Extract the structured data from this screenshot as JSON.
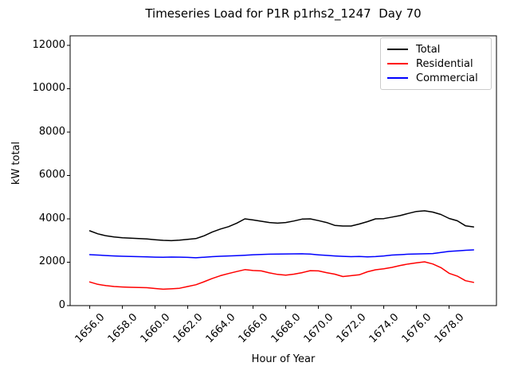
{
  "title": "Timeseries Load for P1R p1rhs2_1247  Day 70",
  "xlabel": "Hour of Year",
  "ylabel": "kW total",
  "legend": {
    "items": [
      {
        "label": "Total",
        "color": "#000000"
      },
      {
        "label": "Residential",
        "color": "#ff0000"
      },
      {
        "label": "Commercial",
        "color": "#0000ff"
      }
    ]
  },
  "colors": {
    "total": "#000000",
    "residential": "#ff0000",
    "commercial": "#0000ff",
    "spine": "#000000",
    "legend_border": "#cccccc",
    "background": "#ffffff"
  },
  "chart_data": {
    "type": "line",
    "title": "Timeseries Load for P1R p1rhs2_1247  Day 70",
    "xlabel": "Hour of Year",
    "ylabel": "kW total",
    "grid": false,
    "legend_position": "upper right",
    "xlim": [
      1654.8,
      1680.9
    ],
    "ylim": [
      0,
      12440
    ],
    "xticks": [
      {
        "value": 1656,
        "label": "1656.0"
      },
      {
        "value": 1658,
        "label": "1658.0"
      },
      {
        "value": 1660,
        "label": "1660.0"
      },
      {
        "value": 1662,
        "label": "1662.0"
      },
      {
        "value": 1664,
        "label": "1664.0"
      },
      {
        "value": 1666,
        "label": "1666.0"
      },
      {
        "value": 1668,
        "label": "1668.0"
      },
      {
        "value": 1670,
        "label": "1670.0"
      },
      {
        "value": 1672,
        "label": "1672.0"
      },
      {
        "value": 1674,
        "label": "1674.0"
      },
      {
        "value": 1676,
        "label": "1676.0"
      },
      {
        "value": 1678,
        "label": "1678.0"
      }
    ],
    "yticks": [
      {
        "value": 0,
        "label": "0"
      },
      {
        "value": 2000,
        "label": "2000"
      },
      {
        "value": 4000,
        "label": "4000"
      },
      {
        "value": 6000,
        "label": "6000"
      },
      {
        "value": 8000,
        "label": "8000"
      },
      {
        "value": 10000,
        "label": "10000"
      },
      {
        "value": 12000,
        "label": "12000"
      }
    ],
    "x": [
      1656.0,
      1656.5,
      1657.0,
      1657.5,
      1658.0,
      1658.5,
      1659.0,
      1659.5,
      1660.0,
      1660.5,
      1661.0,
      1661.5,
      1662.0,
      1662.5,
      1663.0,
      1663.5,
      1664.0,
      1664.5,
      1665.0,
      1665.5,
      1666.0,
      1666.5,
      1667.0,
      1667.5,
      1668.0,
      1668.5,
      1669.0,
      1669.5,
      1670.0,
      1670.5,
      1671.0,
      1671.5,
      1672.0,
      1672.5,
      1673.0,
      1673.5,
      1674.0,
      1674.5,
      1675.0,
      1675.5,
      1676.0,
      1676.5,
      1677.0,
      1677.5,
      1678.0,
      1678.5,
      1679.0,
      1679.5
    ],
    "series": [
      {
        "name": "Total",
        "color": "#000000",
        "values": [
          3450,
          3310,
          3220,
          3165,
          3130,
          3110,
          3090,
          3070,
          3040,
          3010,
          2995,
          3020,
          3055,
          3090,
          3220,
          3390,
          3530,
          3640,
          3800,
          4000,
          3950,
          3890,
          3830,
          3800,
          3830,
          3900,
          3990,
          4000,
          3920,
          3830,
          3700,
          3670,
          3670,
          3760,
          3870,
          4000,
          4010,
          4080,
          4150,
          4250,
          4340,
          4370,
          4310,
          4200,
          4020,
          3910,
          3680,
          3630
        ]
      },
      {
        "name": "Residential",
        "color": "#ff0000",
        "values": [
          1090,
          980,
          920,
          880,
          860,
          845,
          835,
          825,
          790,
          755,
          775,
          800,
          880,
          960,
          1100,
          1250,
          1380,
          1480,
          1570,
          1660,
          1620,
          1600,
          1510,
          1440,
          1400,
          1450,
          1520,
          1610,
          1600,
          1520,
          1450,
          1340,
          1380,
          1420,
          1560,
          1650,
          1700,
          1760,
          1850,
          1920,
          1970,
          2020,
          1920,
          1750,
          1490,
          1360,
          1150,
          1070
        ]
      },
      {
        "name": "Commercial",
        "color": "#0000ff",
        "values": [
          2350,
          2330,
          2310,
          2290,
          2275,
          2265,
          2255,
          2245,
          2235,
          2230,
          2240,
          2235,
          2225,
          2205,
          2230,
          2255,
          2275,
          2290,
          2300,
          2320,
          2345,
          2360,
          2370,
          2375,
          2380,
          2385,
          2390,
          2375,
          2340,
          2315,
          2290,
          2270,
          2255,
          2265,
          2250,
          2260,
          2290,
          2330,
          2350,
          2370,
          2380,
          2390,
          2400,
          2450,
          2500,
          2520,
          2550,
          2570
        ]
      }
    ]
  }
}
